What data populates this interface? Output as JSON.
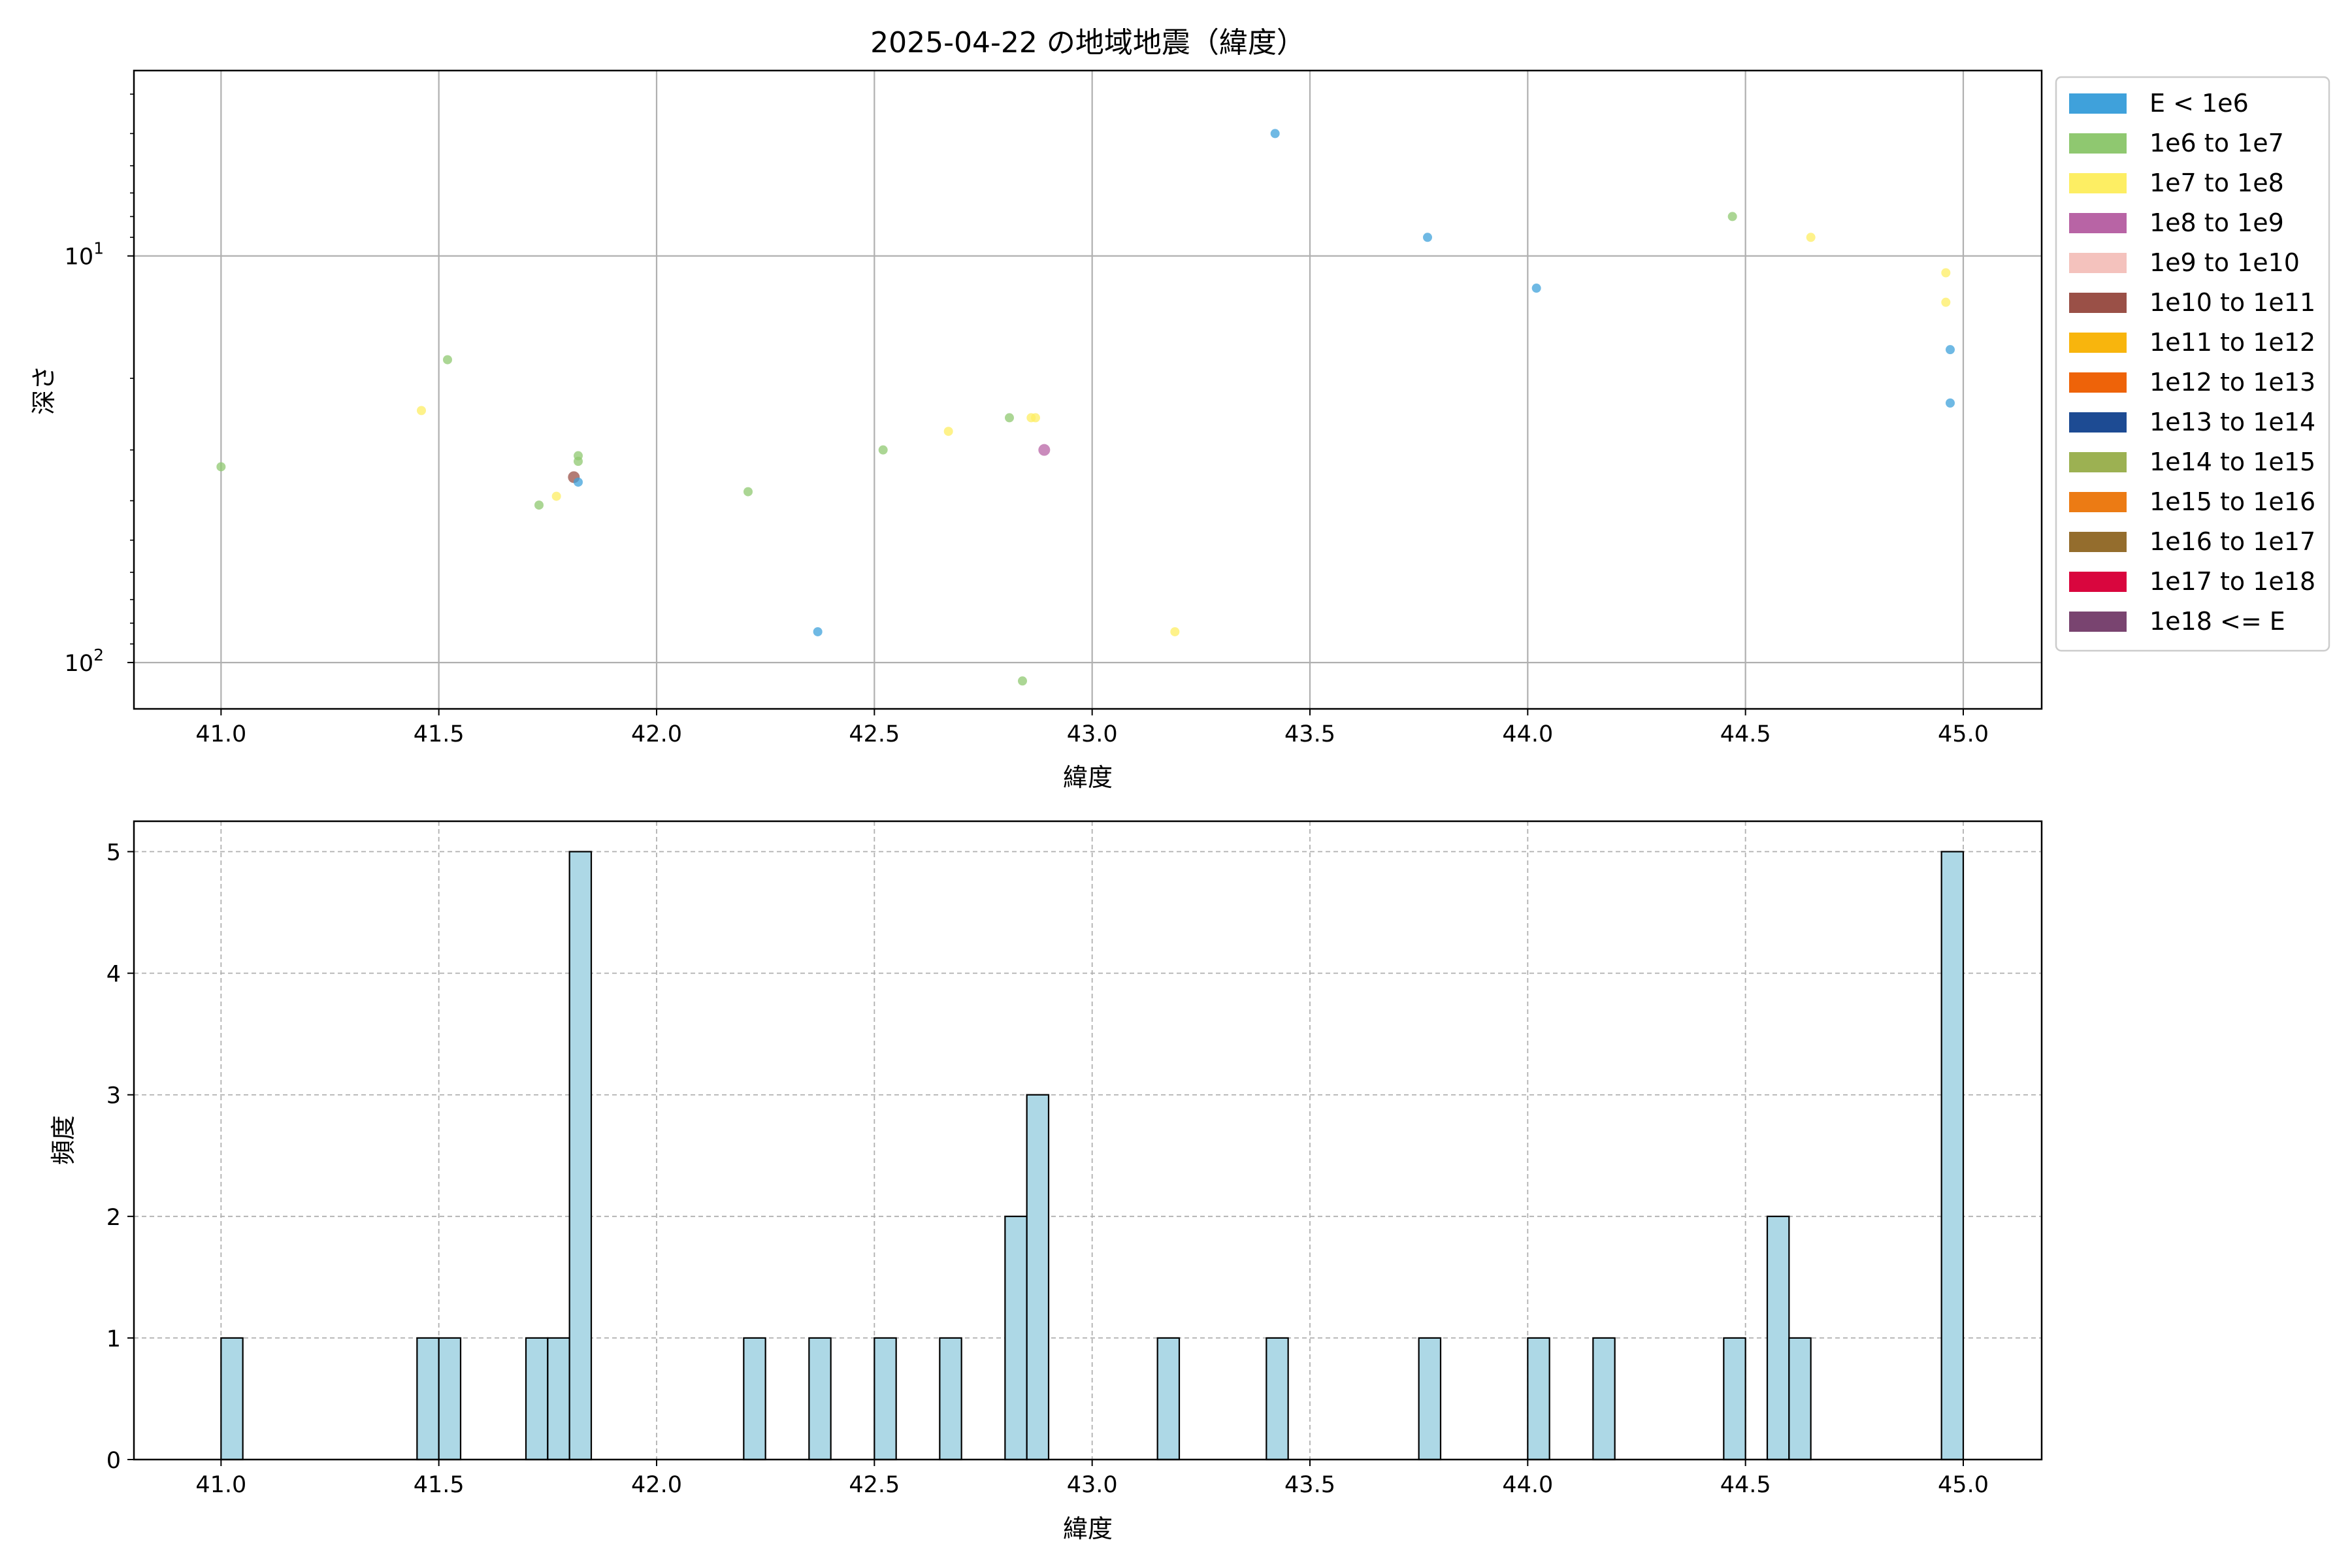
{
  "chart_data": [
    {
      "type": "scatter",
      "title": "2025-04-22 の地域地震（緯度）",
      "xlabel": "緯度",
      "ylabel": "深さ",
      "xlim": [
        40.8,
        45.18
      ],
      "ylim": [
        130,
        3.5
      ],
      "y_scale": "log",
      "y_inverted": true,
      "grid": true,
      "x_ticks": [
        "41.0",
        "41.5",
        "42.0",
        "42.5",
        "43.0",
        "43.5",
        "44.0",
        "44.5",
        "45.0"
      ],
      "y_tick_labels": [
        {
          "value": 10,
          "base": "10",
          "exp": "1"
        },
        {
          "value": 100,
          "base": "10",
          "exp": "2"
        }
      ],
      "legend": {
        "position": "outside-right",
        "entries": [
          {
            "label": "E < 1e6",
            "color": "#3fa1db"
          },
          {
            "label": "1e6 to 1e7",
            "color": "#8fc870"
          },
          {
            "label": "1e7 to 1e8",
            "color": "#fdee63"
          },
          {
            "label": "1e8 to 1e9",
            "color": "#b864a5"
          },
          {
            "label": "1e9 to 1e10",
            "color": "#f4c2bd"
          },
          {
            "label": "1e10 to 1e11",
            "color": "#9a5047"
          },
          {
            "label": "1e11 to 1e12",
            "color": "#f8b50d"
          },
          {
            "label": "1e12 to 1e13",
            "color": "#ee6309"
          },
          {
            "label": "1e13 to 1e14",
            "color": "#1d4b93"
          },
          {
            "label": "1e14 to 1e15",
            "color": "#9cb152"
          },
          {
            "label": "1e15 to 1e16",
            "color": "#ec7b14"
          },
          {
            "label": "1e16 to 1e17",
            "color": "#946d2d"
          },
          {
            "label": "1e17 to 1e18",
            "color": "#d9063e"
          },
          {
            "label": "1e18 <= E",
            "color": "#794470"
          }
        ]
      },
      "points": [
        {
          "x": 41.0,
          "y": 33,
          "c": 1
        },
        {
          "x": 41.46,
          "y": 24,
          "c": 2
        },
        {
          "x": 41.52,
          "y": 18,
          "c": 1
        },
        {
          "x": 41.73,
          "y": 41,
          "c": 1
        },
        {
          "x": 41.77,
          "y": 39,
          "c": 2
        },
        {
          "x": 41.81,
          "y": 35,
          "c": 5
        },
        {
          "x": 41.82,
          "y": 36,
          "c": 0
        },
        {
          "x": 41.82,
          "y": 31,
          "c": 1
        },
        {
          "x": 41.82,
          "y": 32,
          "c": 1
        },
        {
          "x": 42.21,
          "y": 38,
          "c": 1
        },
        {
          "x": 42.37,
          "y": 84,
          "c": 0
        },
        {
          "x": 42.52,
          "y": 30,
          "c": 1
        },
        {
          "x": 42.67,
          "y": 27,
          "c": 2
        },
        {
          "x": 42.81,
          "y": 25,
          "c": 1
        },
        {
          "x": 42.84,
          "y": 111,
          "c": 1
        },
        {
          "x": 42.86,
          "y": 25,
          "c": 2
        },
        {
          "x": 42.87,
          "y": 25,
          "c": 2
        },
        {
          "x": 42.89,
          "y": 30,
          "c": 3
        },
        {
          "x": 43.19,
          "y": 84,
          "c": 2
        },
        {
          "x": 43.42,
          "y": 5,
          "c": 0
        },
        {
          "x": 43.77,
          "y": 9,
          "c": 0
        },
        {
          "x": 44.02,
          "y": 12,
          "c": 0
        },
        {
          "x": 44.47,
          "y": 8,
          "c": 1
        },
        {
          "x": 44.65,
          "y": 9,
          "c": 2
        },
        {
          "x": 44.96,
          "y": 11,
          "c": 2
        },
        {
          "x": 44.96,
          "y": 13,
          "c": 2
        },
        {
          "x": 44.97,
          "y": 17,
          "c": 0
        },
        {
          "x": 44.97,
          "y": 23,
          "c": 0
        }
      ]
    },
    {
      "type": "bar",
      "xlabel": "緯度",
      "ylabel": "頻度",
      "xlim": [
        40.8,
        45.18
      ],
      "ylim": [
        0,
        5.25
      ],
      "grid": true,
      "x_ticks": [
        "41.0",
        "41.5",
        "42.0",
        "42.5",
        "43.0",
        "43.5",
        "44.0",
        "44.5",
        "45.0"
      ],
      "y_ticks": [
        "0",
        "1",
        "2",
        "3",
        "4",
        "5"
      ],
      "bin_width": 0.05,
      "bar_color": "#add8e6",
      "bins": [
        {
          "x": 41.0,
          "count": 1
        },
        {
          "x": 41.45,
          "count": 1
        },
        {
          "x": 41.5,
          "count": 1
        },
        {
          "x": 41.7,
          "count": 1
        },
        {
          "x": 41.75,
          "count": 1
        },
        {
          "x": 41.8,
          "count": 5
        },
        {
          "x": 42.2,
          "count": 1
        },
        {
          "x": 42.35,
          "count": 1
        },
        {
          "x": 42.5,
          "count": 1
        },
        {
          "x": 42.65,
          "count": 1
        },
        {
          "x": 42.8,
          "count": 2
        },
        {
          "x": 42.85,
          "count": 3
        },
        {
          "x": 43.15,
          "count": 1
        },
        {
          "x": 43.4,
          "count": 1
        },
        {
          "x": 43.75,
          "count": 1
        },
        {
          "x": 44.0,
          "count": 1
        },
        {
          "x": 44.15,
          "count": 1
        },
        {
          "x": 44.45,
          "count": 1
        },
        {
          "x": 44.55,
          "count": 2
        },
        {
          "x": 44.6,
          "count": 1
        },
        {
          "x": 44.95,
          "count": 5
        }
      ]
    }
  ]
}
